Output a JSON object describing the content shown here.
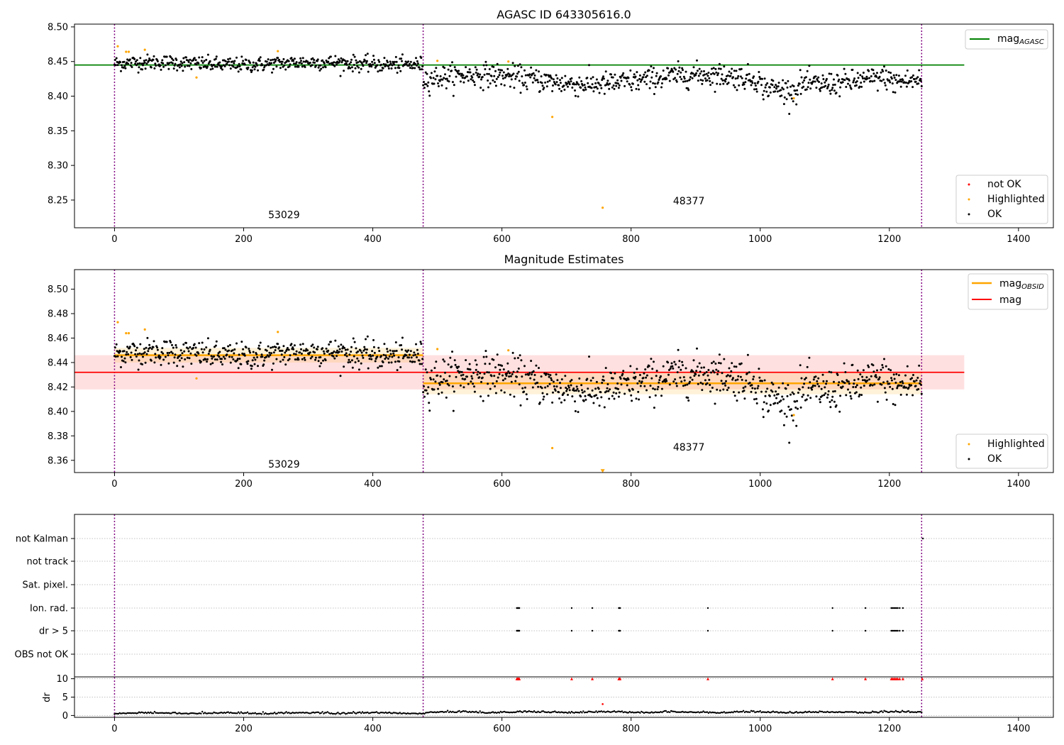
{
  "chart_data": [
    {
      "type": "scatter",
      "title": "AGASC ID 643305616.0",
      "xlim": [
        -62,
        1454
      ],
      "ylim": [
        8.21,
        8.504
      ],
      "xticks": [
        0,
        200,
        400,
        600,
        800,
        1000,
        1200,
        1400
      ],
      "yticks": [
        8.25,
        8.3,
        8.35,
        8.4,
        8.45,
        8.5
      ],
      "ytick_labels": [
        "8.25",
        "8.30",
        "8.35",
        "8.40",
        "8.45",
        "8.50"
      ],
      "vlines": [
        0,
        478,
        1250
      ],
      "hline": {
        "y": 8.445,
        "x0": -62,
        "x1": 1316,
        "color": "#008000"
      },
      "segments": [
        {
          "x0": 0,
          "x1": 478,
          "mean": 8.447,
          "sd": 0.006
        },
        {
          "x0": 478,
          "x1": 1250,
          "mean": 8.422,
          "sd": 0.011
        }
      ],
      "highlighted": [
        [
          5,
          8.472
        ],
        [
          18,
          8.464
        ],
        [
          22,
          8.464
        ],
        [
          47,
          8.467
        ],
        [
          127,
          8.427
        ],
        [
          253,
          8.465
        ],
        [
          500,
          8.451
        ],
        [
          610,
          8.45
        ],
        [
          678,
          8.37
        ],
        [
          1052,
          8.397
        ],
        [
          756,
          8.239
        ]
      ],
      "annotations": [
        {
          "x": 238,
          "y": 8.224,
          "text": "53029"
        },
        {
          "x": 865,
          "y": 8.244,
          "text": "48377"
        }
      ],
      "legend_top": [
        {
          "label": "mag",
          "sub": "AGASC",
          "color": "#008000"
        }
      ],
      "legend_bottom": [
        {
          "label": "not OK",
          "color": "#ff0000"
        },
        {
          "label": "Highlighted",
          "color": "#ffa500"
        },
        {
          "label": "OK",
          "color": "#000000"
        }
      ]
    },
    {
      "type": "scatter",
      "title": "Magnitude Estimates",
      "xlim": [
        -62,
        1454
      ],
      "ylim": [
        8.35,
        8.516
      ],
      "xticks": [
        0,
        200,
        400,
        600,
        800,
        1000,
        1200,
        1400
      ],
      "yticks": [
        8.36,
        8.38,
        8.4,
        8.42,
        8.44,
        8.46,
        8.48,
        8.5
      ],
      "ytick_labels": [
        "8.36",
        "8.38",
        "8.40",
        "8.42",
        "8.44",
        "8.46",
        "8.48",
        "8.50"
      ],
      "vlines": [
        0,
        478,
        1250
      ],
      "mag_line": {
        "y": 8.432,
        "band": [
          8.418,
          8.446
        ],
        "x0": -62,
        "x1": 1316,
        "color": "#ff0000"
      },
      "obsid_lines": [
        {
          "x0": 0,
          "x1": 478,
          "y": 8.446,
          "band": [
            8.44,
            8.452
          ]
        },
        {
          "x0": 478,
          "x1": 1250,
          "y": 8.423,
          "band": [
            8.414,
            8.432
          ]
        }
      ],
      "highlighted": [
        [
          5,
          8.473
        ],
        [
          18,
          8.464
        ],
        [
          22,
          8.464
        ],
        [
          47,
          8.467
        ],
        [
          127,
          8.427
        ],
        [
          253,
          8.465
        ],
        [
          500,
          8.451
        ],
        [
          610,
          8.45
        ],
        [
          678,
          8.37
        ],
        [
          1052,
          8.397
        ]
      ],
      "off_scale_marker": {
        "x": 756,
        "y": 8.351
      },
      "annotations": [
        {
          "x": 238,
          "y": 8.354,
          "text": "53029"
        },
        {
          "x": 865,
          "y": 8.368,
          "text": "48377"
        }
      ],
      "legend_top": [
        {
          "label": "mag",
          "sub": "OBSID",
          "color": "#ffa500"
        },
        {
          "label": "mag",
          "sub": "",
          "color": "#ff0000"
        }
      ],
      "legend_bottom": [
        {
          "label": "Highlighted",
          "color": "#ffa500"
        },
        {
          "label": "OK",
          "color": "#000000"
        }
      ]
    },
    {
      "type": "scatter",
      "title": "",
      "xlim": [
        -62,
        1454
      ],
      "xticks": [
        0,
        200,
        400,
        600,
        800,
        1000,
        1200,
        1400
      ],
      "flag_rows": [
        "not Kalman",
        "not track",
        "Sat. pixel.",
        "Ion. rad.",
        "dr > 5",
        "OBS not OK"
      ],
      "flag_points": {
        "Ion. rad.": [
          623,
          624,
          625,
          626,
          627,
          708,
          740,
          781,
          782,
          783,
          919,
          1112,
          1163,
          1203,
          1205,
          1207,
          1209,
          1211,
          1213,
          1216,
          1221
        ],
        "dr > 5": [
          623,
          624,
          625,
          626,
          627,
          708,
          740,
          781,
          782,
          783,
          919,
          1112,
          1163,
          1203,
          1205,
          1207,
          1209,
          1211,
          1213,
          1216,
          1221
        ]
      },
      "dr_ylim": [
        -0.5,
        10.5
      ],
      "dr_yticks": [
        0,
        5,
        10
      ],
      "dr_ylabel": "dr",
      "dr_clipped_x": [
        623,
        624,
        625,
        626,
        627,
        708,
        740,
        781,
        782,
        783,
        919,
        1112,
        1163,
        1203,
        1205,
        1207,
        1209,
        1211,
        1213,
        1216,
        1221,
        1251
      ],
      "dr_outlier": [
        756,
        3.1
      ],
      "vlines": [
        0,
        478,
        1250
      ]
    }
  ]
}
